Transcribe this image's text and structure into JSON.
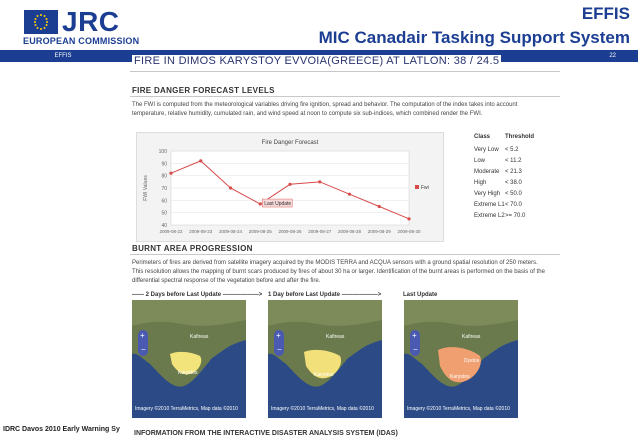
{
  "header": {
    "logo_text": "JRC",
    "org": "EUROPEAN COMMISSION",
    "sub_tag": "EFFIS",
    "effis": "EFFIS",
    "title": "MIC Canadair Tasking Support System",
    "page_number": "22",
    "brand_color": "#1b3e93"
  },
  "page": {
    "title": "FIRE IN DIMOS KARYSTOY EVVOIA(GREECE) AT LATLON: 38 / 24.5"
  },
  "fire_danger": {
    "heading": "FIRE DANGER FORECAST LEVELS",
    "text_line1": "The FWI is computed from the meteorological variables driving fire ignition, spread and behavior. The computation of the index takes into account",
    "text_line2": "temperature, relative humidity, cumulated rain, and wind speed at noon to compute six sub-indices, which combined render the FWI."
  },
  "chart_data": {
    "type": "line",
    "title": "Fire Danger Forecast",
    "ylabel": "FWI Values",
    "xlabel": "",
    "x": [
      "2009-08-22",
      "2009-08-23",
      "2009-08-24",
      "2009-08-25",
      "2009-08-26",
      "2009-08-27",
      "2009-08-28",
      "2009-08-29",
      "2009-08-30"
    ],
    "series": [
      {
        "name": "Fwi",
        "values": [
          82,
          92,
          70,
          57,
          73,
          75,
          65,
          55,
          45
        ],
        "color": "#d94a4a"
      }
    ],
    "ylim": [
      40,
      100
    ],
    "yticks": [
      40,
      50,
      60,
      70,
      80,
      90,
      100
    ],
    "annotation": "Last Update",
    "annotation_x": "2009-08-25",
    "grid": true,
    "legend": "right"
  },
  "classes": {
    "col_class": "Class",
    "col_threshold": "Threshold",
    "rows": [
      {
        "name": "Very Low",
        "value": "< 5.2"
      },
      {
        "name": "Low",
        "value": "< 11.2"
      },
      {
        "name": "Moderate",
        "value": "< 21.3"
      },
      {
        "name": "High",
        "value": "< 38.0"
      },
      {
        "name": "Very High",
        "value": "< 50.0"
      },
      {
        "name": "Extreme L1",
        "value": "< 70.0"
      },
      {
        "name": "Extreme L2",
        "value": ">= 70.0"
      }
    ]
  },
  "burnt": {
    "heading": "BURNT AREA PROGRESSION",
    "text_line1": "Perimeters of fires are derived from satellite imagery acquired by the MODIS TERRA and ACQUA sensors with a ground spatial resolution of 250 meters.",
    "text_line2": "This resolution allows the mapping of burnt scars produced by fires of about 30 ha or larger. Identification of the burnt areas is performed on the basis of the",
    "text_line3": "differential spectral response of the vegetation before and after the fire.",
    "labels": [
      "2 Days before Last Update",
      "1 Day before Last Update",
      "Last Update"
    ],
    "map_credit": "Imagery ©2010 TerraMetrics, Map data ©2010",
    "place1": "Kafireas",
    "place2": "Dystos",
    "place3": "Karystos"
  },
  "footer": {
    "left": "IDRC Davos 2010 Early Warning Sy",
    "next_section": "INFORMATION FROM THE INTERACTIVE DISASTER ANALYSIS SYSTEM (IDAS)"
  }
}
